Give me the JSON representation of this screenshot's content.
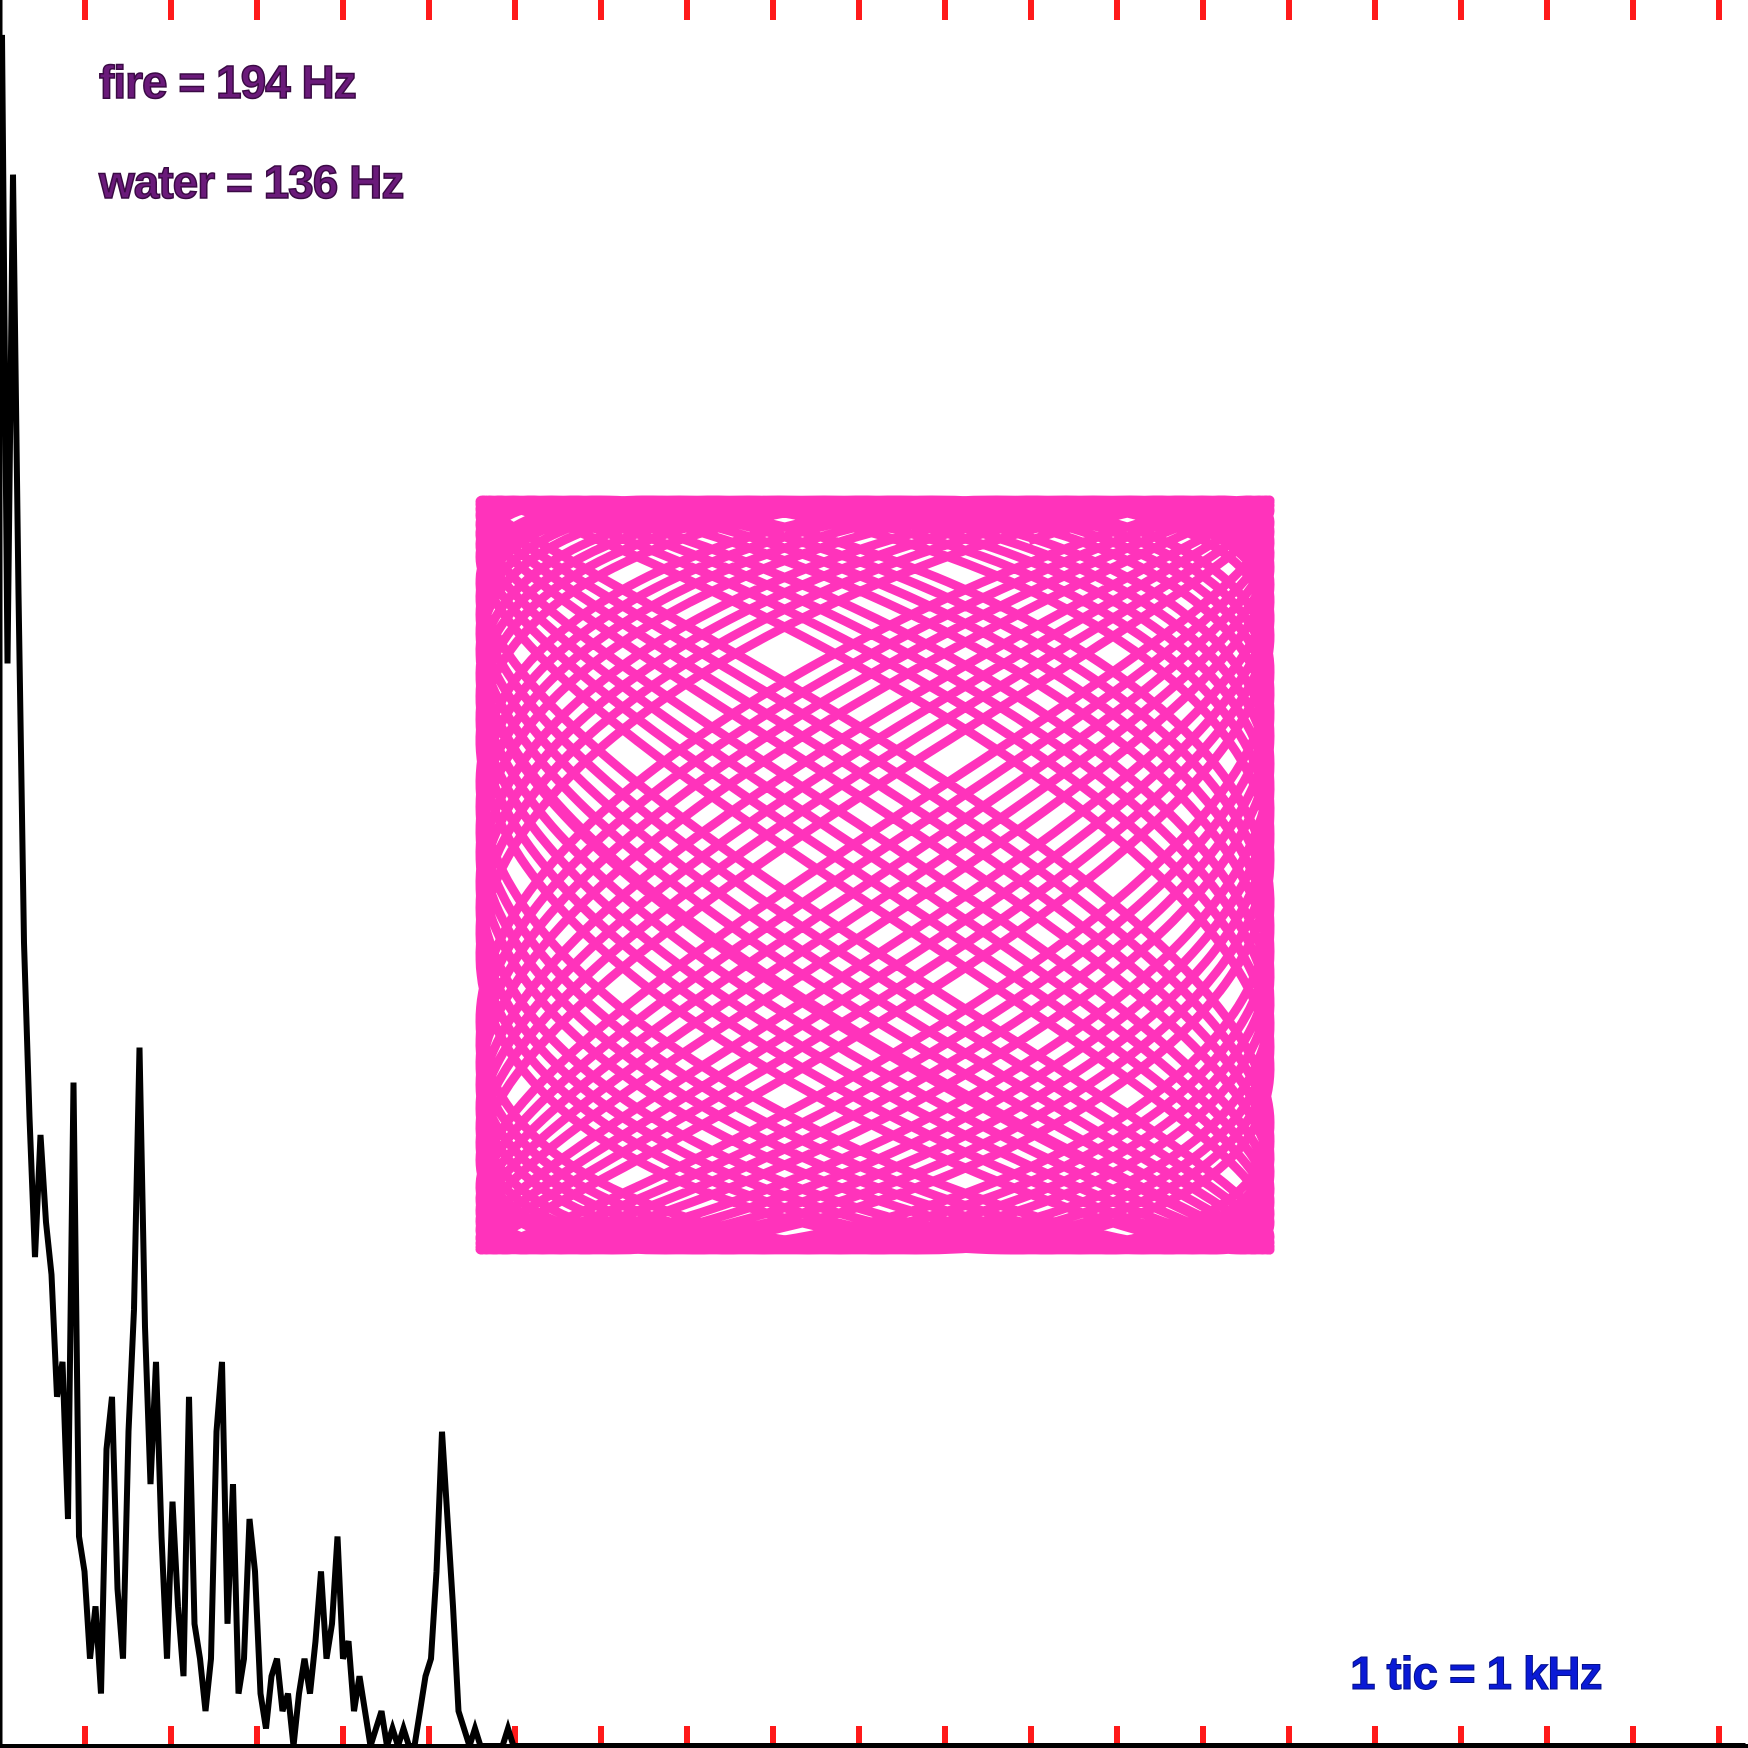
{
  "chart_data": [
    {
      "type": "line",
      "x_unit_kHz_per_tic": 1,
      "tick_count": 21,
      "colors": {
        "spectrum": "#000000",
        "ticks": "#ff1a1a"
      },
      "grid": false,
      "spectrum_y": [
        0.98,
        0.62,
        0.9,
        0.66,
        0.46,
        0.36,
        0.28,
        0.35,
        0.3,
        0.27,
        0.2,
        0.22,
        0.13,
        0.38,
        0.12,
        0.1,
        0.05,
        0.08,
        0.03,
        0.17,
        0.2,
        0.09,
        0.05,
        0.18,
        0.25,
        0.4,
        0.24,
        0.15,
        0.22,
        0.12,
        0.05,
        0.14,
        0.08,
        0.04,
        0.2,
        0.07,
        0.05,
        0.02,
        0.05,
        0.18,
        0.22,
        0.07,
        0.15,
        0.03,
        0.05,
        0.13,
        0.1,
        0.03,
        0.01,
        0.04,
        0.05,
        0.02,
        0.03,
        0.0,
        0.03,
        0.05,
        0.03,
        0.06,
        0.1,
        0.05,
        0.07,
        0.12,
        0.05,
        0.06,
        0.02,
        0.04,
        0.02,
        0.0,
        0.01,
        0.02,
        0.0,
        0.01,
        0.0,
        0.01,
        0.0,
        0.0,
        0.02,
        0.04,
        0.05,
        0.1,
        0.18,
        0.13,
        0.08,
        0.02,
        0.01,
        0.0,
        0.01,
        0.0,
        0.0,
        0.0,
        0.0,
        0.0,
        0.01,
        0.0,
        0.0,
        0.0,
        0.0,
        0.0,
        0.0,
        0.0,
        0.0,
        0.0,
        0.0,
        0.0,
        0.0,
        0.0,
        0.0,
        0.0,
        0.0,
        0.0,
        0.0,
        0.0,
        0.0,
        0.0,
        0.0,
        0.0,
        0.0,
        0.0,
        0.0,
        0.0,
        0.0,
        0.0,
        0.0,
        0.0,
        0.0,
        0.0,
        0.0,
        0.0,
        0.0,
        0.0,
        0.0,
        0.0,
        0.0,
        0.0,
        0.0,
        0.0,
        0.0,
        0.0,
        0.0,
        0.0,
        0.0,
        0.0,
        0.0,
        0.0,
        0.0,
        0.0,
        0.0,
        0.0,
        0.0,
        0.0,
        0.0,
        0.0,
        0.0,
        0.0,
        0.0,
        0.0,
        0.0,
        0.0,
        0.0,
        0.0,
        0.0,
        0.0,
        0.0,
        0.0,
        0.0,
        0.0,
        0.0,
        0.0,
        0.0,
        0.0,
        0.0,
        0.0,
        0.0,
        0.0,
        0.0,
        0.0,
        0.0,
        0.0,
        0.0,
        0.0,
        0.0,
        0.0,
        0.0,
        0.0,
        0.0,
        0.0,
        0.0,
        0.0,
        0.0,
        0.0,
        0.0,
        0.0,
        0.0,
        0.0,
        0.0,
        0.0,
        0.0,
        0.0,
        0.0,
        0.0,
        0.0,
        0.0,
        0.0,
        0.0,
        0.0,
        0.0,
        0.0,
        0.0,
        0.0,
        0.0,
        0.0,
        0.0,
        0.0,
        0.0,
        0.0,
        0.0,
        0.0,
        0.0,
        0.0,
        0.0,
        0.0,
        0.0,
        0.0,
        0.0,
        0.0,
        0.0,
        0.0,
        0.0,
        0.0,
        0.0,
        0.0,
        0.0,
        0.0,
        0.0,
        0.0,
        0.0,
        0.0,
        0.0,
        0.0,
        0.0,
        0.0,
        0.0,
        0.0,
        0.0,
        0.0,
        0.0,
        0.0,
        0.0,
        0.0,
        0.0,
        0.0,
        0.0,
        0.0,
        0.0,
        0.0,
        0.0,
        0.0,
        0.0,
        0.0,
        0.0,
        0.0,
        0.0,
        0.0,
        0.0,
        0.0,
        0.0,
        0.0,
        0.0,
        0.0,
        0.0,
        0.0,
        0.0,
        0.0,
        0.0,
        0.0,
        0.0,
        0.0,
        0.0,
        0.0,
        0.0,
        0.0,
        0.0,
        0.0,
        0.0,
        0.0,
        0.0,
        0.0,
        0.0,
        0.0,
        0.0,
        0.0,
        0.0,
        0.0,
        0.0,
        0.0,
        0.0,
        0.0,
        0.0,
        0.0,
        0.0,
        0.0,
        0.0,
        0.0,
        0.0,
        0.0,
        0.0,
        0.0,
        0.0,
        0.0,
        0.0,
        0.0,
        0.0,
        0.0,
        0.0,
        0.0,
        0.0,
        0.0,
        0.0,
        0.0,
        0.0
      ]
    },
    {
      "type": "scatter",
      "kind": "lissajous",
      "x_frequency_hz": 194,
      "y_frequency_hz": 136,
      "color": "#ff33bb"
    }
  ],
  "labels": {
    "fire": "fire = 194 Hz",
    "water": "water = 136 Hz",
    "tic": "1 tic = 1 kHz"
  }
}
